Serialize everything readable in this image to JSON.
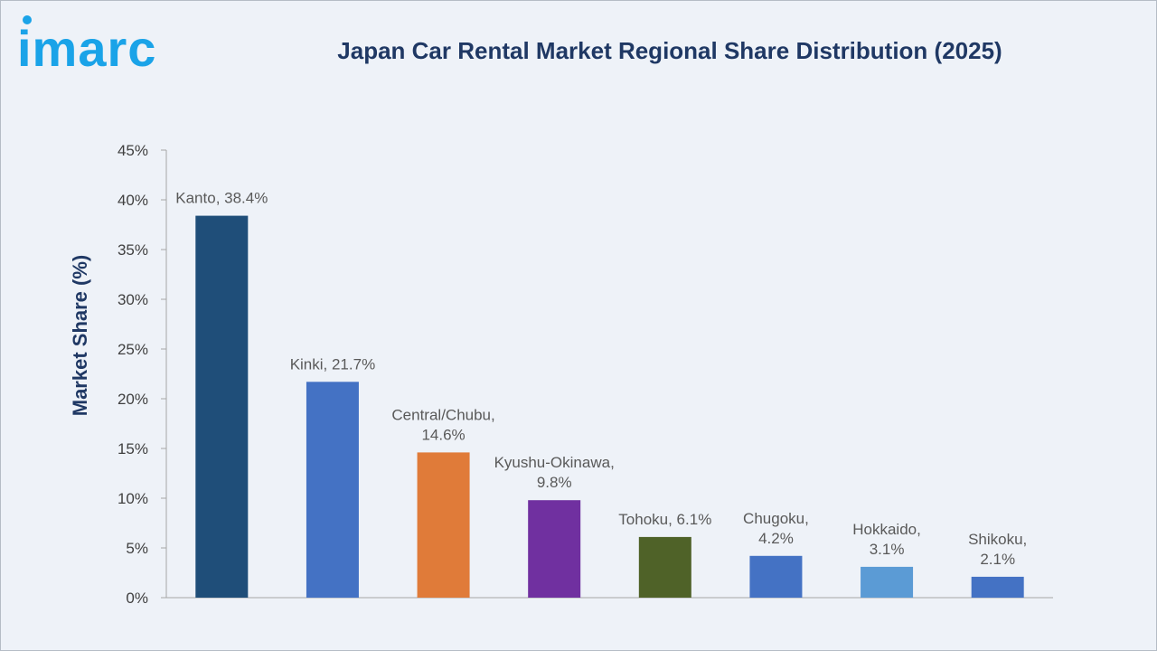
{
  "logo": {
    "text": "imarc",
    "color": "#1aa3e8"
  },
  "chart_data": {
    "type": "bar",
    "title": "Japan Car Rental Market Regional Share Distribution (2025)",
    "xlabel": "",
    "ylabel": "Market Share (%)",
    "ylim": [
      0,
      45
    ],
    "yticks": [
      0,
      5,
      10,
      15,
      20,
      25,
      30,
      35,
      40,
      45
    ],
    "ytick_labels": [
      "0%",
      "5%",
      "10%",
      "15%",
      "20%",
      "25%",
      "30%",
      "35%",
      "40%",
      "45%"
    ],
    "grid": false,
    "legend": "none",
    "categories": [
      "Kanto",
      "Kinki",
      "Central/Chubu",
      "Kyushu-Okinawa",
      "Tohoku",
      "Chugoku",
      "Hokkaido",
      "Shikoku"
    ],
    "values": [
      38.4,
      21.7,
      14.6,
      9.8,
      6.1,
      4.2,
      3.1,
      2.1
    ],
    "data_labels": [
      [
        "Kanto, 38.4%"
      ],
      [
        "Kinki, 21.7%"
      ],
      [
        "Central/Chubu,",
        "14.6%"
      ],
      [
        "Kyushu-Okinawa,",
        "9.8%"
      ],
      [
        "Tohoku, 6.1%"
      ],
      [
        "Chugoku,",
        "4.2%"
      ],
      [
        "Hokkaido,",
        "3.1%"
      ],
      [
        "Shikoku,",
        "2.1%"
      ]
    ],
    "colors": [
      "#1f4e79",
      "#4472c4",
      "#e07b39",
      "#7030a0",
      "#4f6228",
      "#4472c4",
      "#5b9bd5",
      "#4472c4"
    ]
  }
}
